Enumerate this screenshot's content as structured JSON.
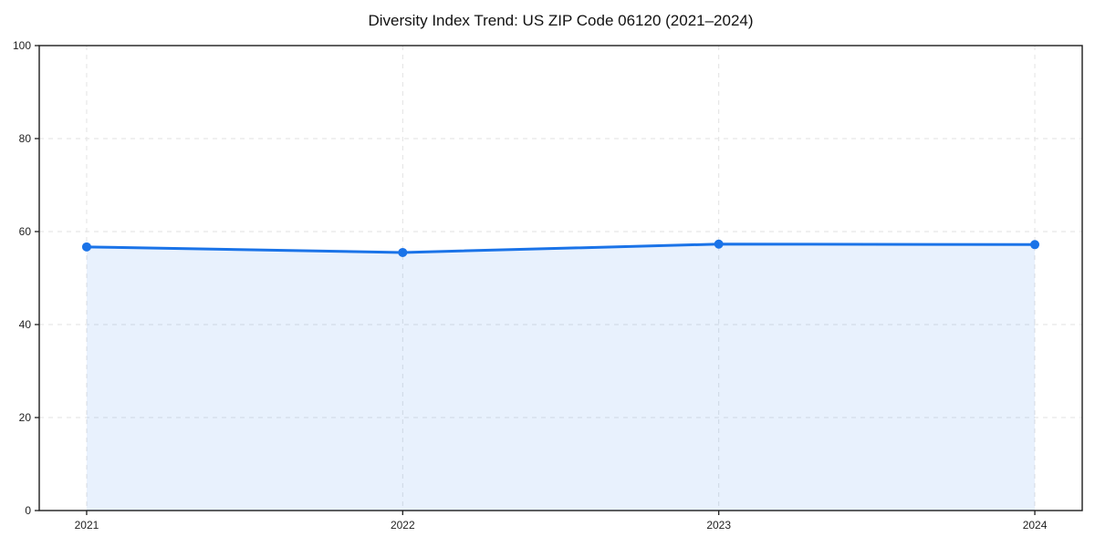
{
  "chart_data": {
    "type": "line",
    "style": "line-with-area-fill-and-markers",
    "title": "Diversity Index Trend: US ZIP Code 06120 (2021–2024)",
    "x": [
      2021,
      2022,
      2023,
      2024
    ],
    "xticks": [
      "2021",
      "2022",
      "2023",
      "2024"
    ],
    "yticks": [
      0,
      20,
      40,
      60,
      80,
      100
    ],
    "series": [
      {
        "name": "Diversity Index",
        "values": [
          56.7,
          55.5,
          57.3,
          57.2
        ]
      }
    ],
    "xlabel": "",
    "ylabel": "",
    "xlim": [
      2020.85,
      2024.15
    ],
    "ylim": [
      0,
      100
    ],
    "grid": "dashed-both-axes",
    "legend_position": "none",
    "colors": {
      "line": "#1a73e8",
      "marker": "#1a73e8",
      "area_fill": "#1a73e8",
      "area_fill_opacity": "0.1",
      "grid": "#e2e2e2",
      "axis": "#1c1c1c",
      "tick_label": "#1f1f1f",
      "title": "#111111",
      "background": "#ffffff"
    }
  }
}
